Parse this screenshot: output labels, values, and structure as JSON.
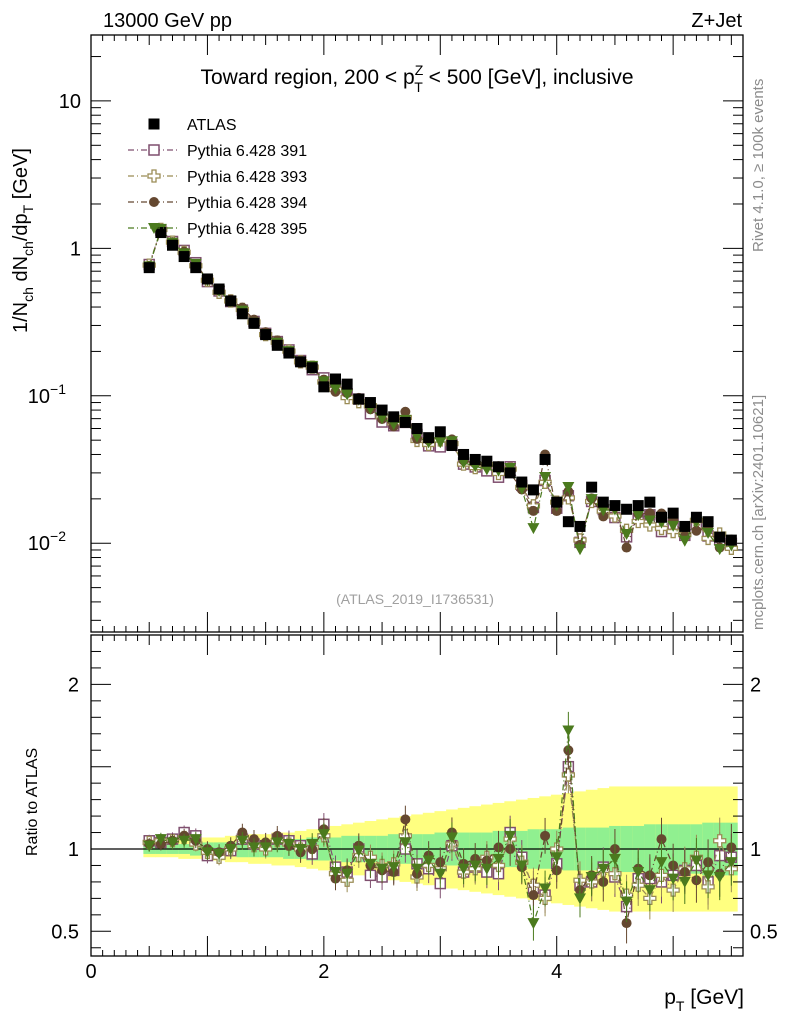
{
  "header": {
    "energy": "13000 GeV pp",
    "process": "Z+Jet"
  },
  "side_labels": {
    "rivet": "Rivet 4.1.0, ≥ 100k events",
    "source": "mcplots.cern.ch [arXiv:2401.10621]"
  },
  "chart_data": {
    "type": "scatter",
    "title": "Toward region, 200 < p_T^Z < 500 [GeV], inclusive",
    "title_parts": {
      "pre": "Toward region, 200 < p",
      "sup": "Z",
      "sub": "T",
      "post": " < 500 [GeV], inclusive"
    },
    "analysis_id": "(ATLAS_2019_I1736531)",
    "xlabel": "p_T [GeV]",
    "xlabel_parts": {
      "main": "p",
      "sub": "T",
      "unit": " [GeV]"
    },
    "ylabel": "1/N_ch dN_ch/dp_T [GeV]",
    "ylabel_parts": {
      "a": "1/N",
      "b": "ch",
      "c": " dN",
      "d": "ch",
      "e": "/dp",
      "f": "T",
      "g": " [GeV]"
    },
    "ratio_ylabel": "Ratio to ATLAS",
    "xlim": [
      0,
      5.6
    ],
    "ylim": [
      0.0025,
      28
    ],
    "ratio_ylim": [
      0.35,
      2.3
    ],
    "yscale": "log",
    "legend_position": "top-left",
    "x_ticks": [
      0,
      2,
      4
    ],
    "y_ticks": [
      {
        "value": 0.01,
        "base": "10",
        "exp": "−2"
      },
      {
        "value": 0.1,
        "base": "10",
        "exp": "−1"
      },
      {
        "value": 1,
        "base": "1",
        "exp": ""
      },
      {
        "value": 10,
        "base": "10",
        "exp": ""
      }
    ],
    "ratio_ticks": [
      0.5,
      1,
      2
    ],
    "x": [
      0.5,
      0.6,
      0.7,
      0.8,
      0.9,
      1.0,
      1.1,
      1.2,
      1.3,
      1.4,
      1.5,
      1.6,
      1.7,
      1.8,
      1.9,
      2.0,
      2.1,
      2.2,
      2.3,
      2.4,
      2.5,
      2.6,
      2.7,
      2.8,
      2.9,
      3.0,
      3.1,
      3.2,
      3.3,
      3.4,
      3.5,
      3.6,
      3.7,
      3.8,
      3.9,
      4.0,
      4.1,
      4.2,
      4.3,
      4.4,
      4.5,
      4.6,
      4.7,
      4.8,
      4.9,
      5.0,
      5.1,
      5.2,
      5.3,
      5.4,
      5.5
    ],
    "data": {
      "name": "ATLAS",
      "values": [
        0.74,
        1.28,
        1.05,
        0.88,
        0.74,
        0.62,
        0.53,
        0.44,
        0.36,
        0.31,
        0.26,
        0.22,
        0.195,
        0.17,
        0.155,
        0.115,
        0.13,
        0.12,
        0.095,
        0.09,
        0.08,
        0.072,
        0.066,
        0.06,
        0.052,
        0.057,
        0.046,
        0.04,
        0.037,
        0.036,
        0.033,
        0.03,
        0.026,
        0.023,
        0.037,
        0.019,
        0.014,
        0.013,
        0.024,
        0.019,
        0.018,
        0.017,
        0.018,
        0.019,
        0.015,
        0.016,
        0.013,
        0.015,
        0.014,
        0.011,
        0.0105
      ],
      "band_inner": [
        0.03,
        0.03,
        0.03,
        0.03,
        0.04,
        0.04,
        0.04,
        0.04,
        0.05,
        0.05,
        0.05,
        0.05,
        0.06,
        0.06,
        0.07,
        0.07,
        0.07,
        0.08,
        0.08,
        0.08,
        0.08,
        0.09,
        0.09,
        0.09,
        0.09,
        0.1,
        0.1,
        0.1,
        0.1,
        0.1,
        0.11,
        0.11,
        0.11,
        0.12,
        0.12,
        0.12,
        0.13,
        0.13,
        0.13,
        0.13,
        0.14,
        0.14,
        0.14,
        0.15,
        0.15,
        0.15,
        0.15,
        0.15,
        0.16,
        0.16,
        0.16
      ],
      "band_outer": [
        0.05,
        0.05,
        0.05,
        0.06,
        0.06,
        0.07,
        0.07,
        0.08,
        0.08,
        0.09,
        0.09,
        0.1,
        0.1,
        0.11,
        0.12,
        0.13,
        0.14,
        0.15,
        0.16,
        0.17,
        0.18,
        0.19,
        0.2,
        0.21,
        0.22,
        0.23,
        0.24,
        0.25,
        0.26,
        0.27,
        0.28,
        0.29,
        0.3,
        0.31,
        0.32,
        0.33,
        0.34,
        0.35,
        0.36,
        0.37,
        0.38,
        0.38,
        0.38,
        0.38,
        0.38,
        0.38,
        0.38,
        0.38,
        0.38,
        0.38,
        0.38
      ]
    },
    "series": [
      {
        "name": "Pythia 6.428 391",
        "color": "#7f4f6f",
        "marker": "open-square",
        "ratio": [
          1.05,
          1.04,
          1.06,
          1.1,
          1.08,
          0.96,
          0.97,
          0.99,
          1.06,
          1.03,
          1.02,
          1.06,
          1.05,
          1.02,
          0.97,
          1.15,
          0.89,
          0.86,
          1.0,
          0.84,
          0.83,
          0.87,
          1.0,
          0.91,
          0.88,
          0.79,
          1.02,
          0.86,
          0.89,
          0.86,
          0.85,
          1.1,
          0.95,
          0.76,
          0.72,
          0.91,
          1.5,
          0.78,
          0.8,
          0.89,
          0.83,
          0.65,
          0.82,
          0.82,
          0.8,
          0.84,
          0.87,
          0.9,
          0.8,
          0.96,
          0.95
        ]
      },
      {
        "name": "Pythia 6.428 393",
        "color": "#9a8c55",
        "marker": "open-cross",
        "ratio": [
          1.04,
          1.05,
          1.05,
          1.07,
          1.03,
          0.98,
          0.95,
          1.0,
          1.07,
          1.02,
          1.0,
          1.05,
          1.03,
          1.0,
          1.01,
          1.08,
          0.85,
          0.81,
          0.96,
          0.95,
          0.9,
          0.91,
          1.08,
          0.83,
          0.9,
          0.88,
          1.03,
          0.86,
          0.88,
          0.95,
          0.9,
          1.06,
          0.92,
          0.78,
          0.7,
          1.0,
          1.45,
          0.81,
          0.8,
          0.87,
          0.85,
          0.72,
          0.78,
          0.7,
          0.84,
          0.75,
          0.88,
          0.95,
          0.77,
          1.05,
          0.88
        ]
      },
      {
        "name": "Pythia 6.428 394",
        "color": "#654830",
        "marker": "filled-circle",
        "ratio": [
          1.03,
          1.03,
          1.05,
          1.08,
          1.05,
          1.0,
          0.98,
          1.02,
          1.1,
          1.06,
          1.04,
          1.08,
          1.02,
          0.98,
          1.0,
          1.12,
          0.82,
          0.87,
          1.02,
          0.9,
          0.87,
          0.86,
          1.18,
          0.85,
          0.96,
          0.92,
          1.1,
          0.91,
          0.94,
          0.93,
          1.01,
          1.0,
          0.89,
          0.72,
          1.08,
          0.87,
          1.6,
          0.75,
          0.84,
          0.8,
          1.0,
          0.55,
          0.88,
          0.84,
          1.06,
          0.9,
          0.86,
          0.81,
          0.92,
          0.85,
          1.01
        ]
      },
      {
        "name": "Pythia 6.428 395",
        "color": "#4b7a1e",
        "marker": "filled-triangle-down",
        "ratio": [
          1.02,
          1.06,
          1.04,
          1.05,
          1.06,
          0.98,
          0.97,
          1.0,
          1.05,
          1.01,
          1.01,
          1.04,
          1.03,
          1.0,
          1.03,
          1.09,
          0.86,
          0.85,
          0.99,
          0.91,
          0.88,
          0.89,
          1.04,
          0.88,
          0.93,
          0.85,
          1.07,
          0.88,
          0.9,
          0.88,
          0.94,
          1.08,
          0.9,
          0.55,
          0.76,
          0.95,
          1.72,
          0.7,
          0.83,
          0.88,
          0.94,
          0.68,
          0.86,
          0.75,
          0.92,
          0.82,
          0.8,
          0.93,
          0.84,
          0.83,
          0.92
        ]
      }
    ]
  }
}
